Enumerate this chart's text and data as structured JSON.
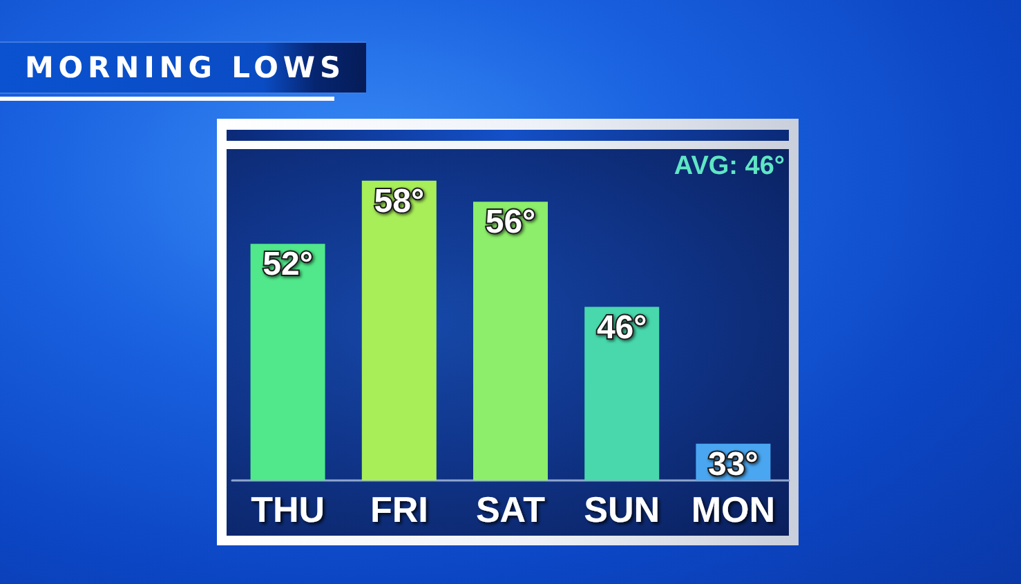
{
  "chart_data": {
    "type": "bar",
    "title": "MORNING LOWS",
    "categories": [
      "THU",
      "FRI",
      "SAT",
      "SUN",
      "MON"
    ],
    "values": [
      52,
      58,
      56,
      46,
      33
    ],
    "colors": [
      "#50e88a",
      "#a8ee58",
      "#8cee6a",
      "#48d8ac",
      "#4aa6f0"
    ],
    "value_labels": [
      "52°",
      "58°",
      "56°",
      "46°",
      "33°"
    ],
    "ylim": [
      29.5,
      61
    ],
    "tick_labels": "x",
    "annotations": [
      "AVG: 46°"
    ]
  }
}
